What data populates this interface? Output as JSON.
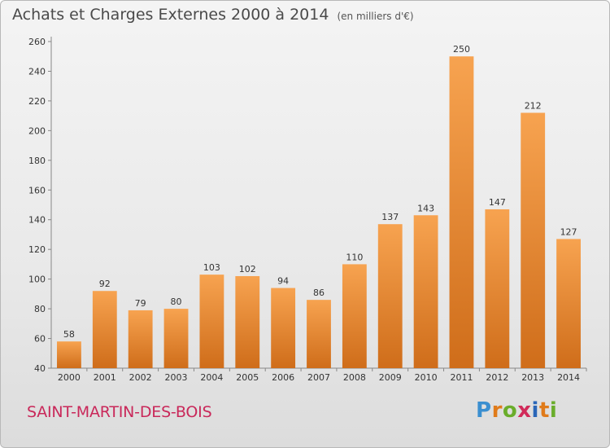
{
  "chart_data": {
    "type": "bar",
    "title": "Achats et Charges Externes 2000 à 2014",
    "subtitle": "(en milliers d'€)",
    "categories": [
      "2000",
      "2001",
      "2002",
      "2003",
      "2004",
      "2005",
      "2006",
      "2007",
      "2008",
      "2009",
      "2010",
      "2011",
      "2012",
      "2013",
      "2014"
    ],
    "values": [
      58,
      92,
      79,
      80,
      103,
      102,
      94,
      86,
      110,
      137,
      143,
      250,
      147,
      212,
      127
    ],
    "ylim": [
      40,
      260
    ],
    "yticks": [
      40,
      60,
      80,
      100,
      120,
      140,
      160,
      180,
      200,
      220,
      240,
      260
    ],
    "grid": false,
    "bar_color": "#f0923a",
    "bar_color_dark": "#d6701c"
  },
  "footer": {
    "commune": "SAINT-MARTIN-DES-BOIS",
    "logo": [
      "P",
      "r",
      "o",
      "x",
      "i",
      "t",
      "i"
    ]
  }
}
